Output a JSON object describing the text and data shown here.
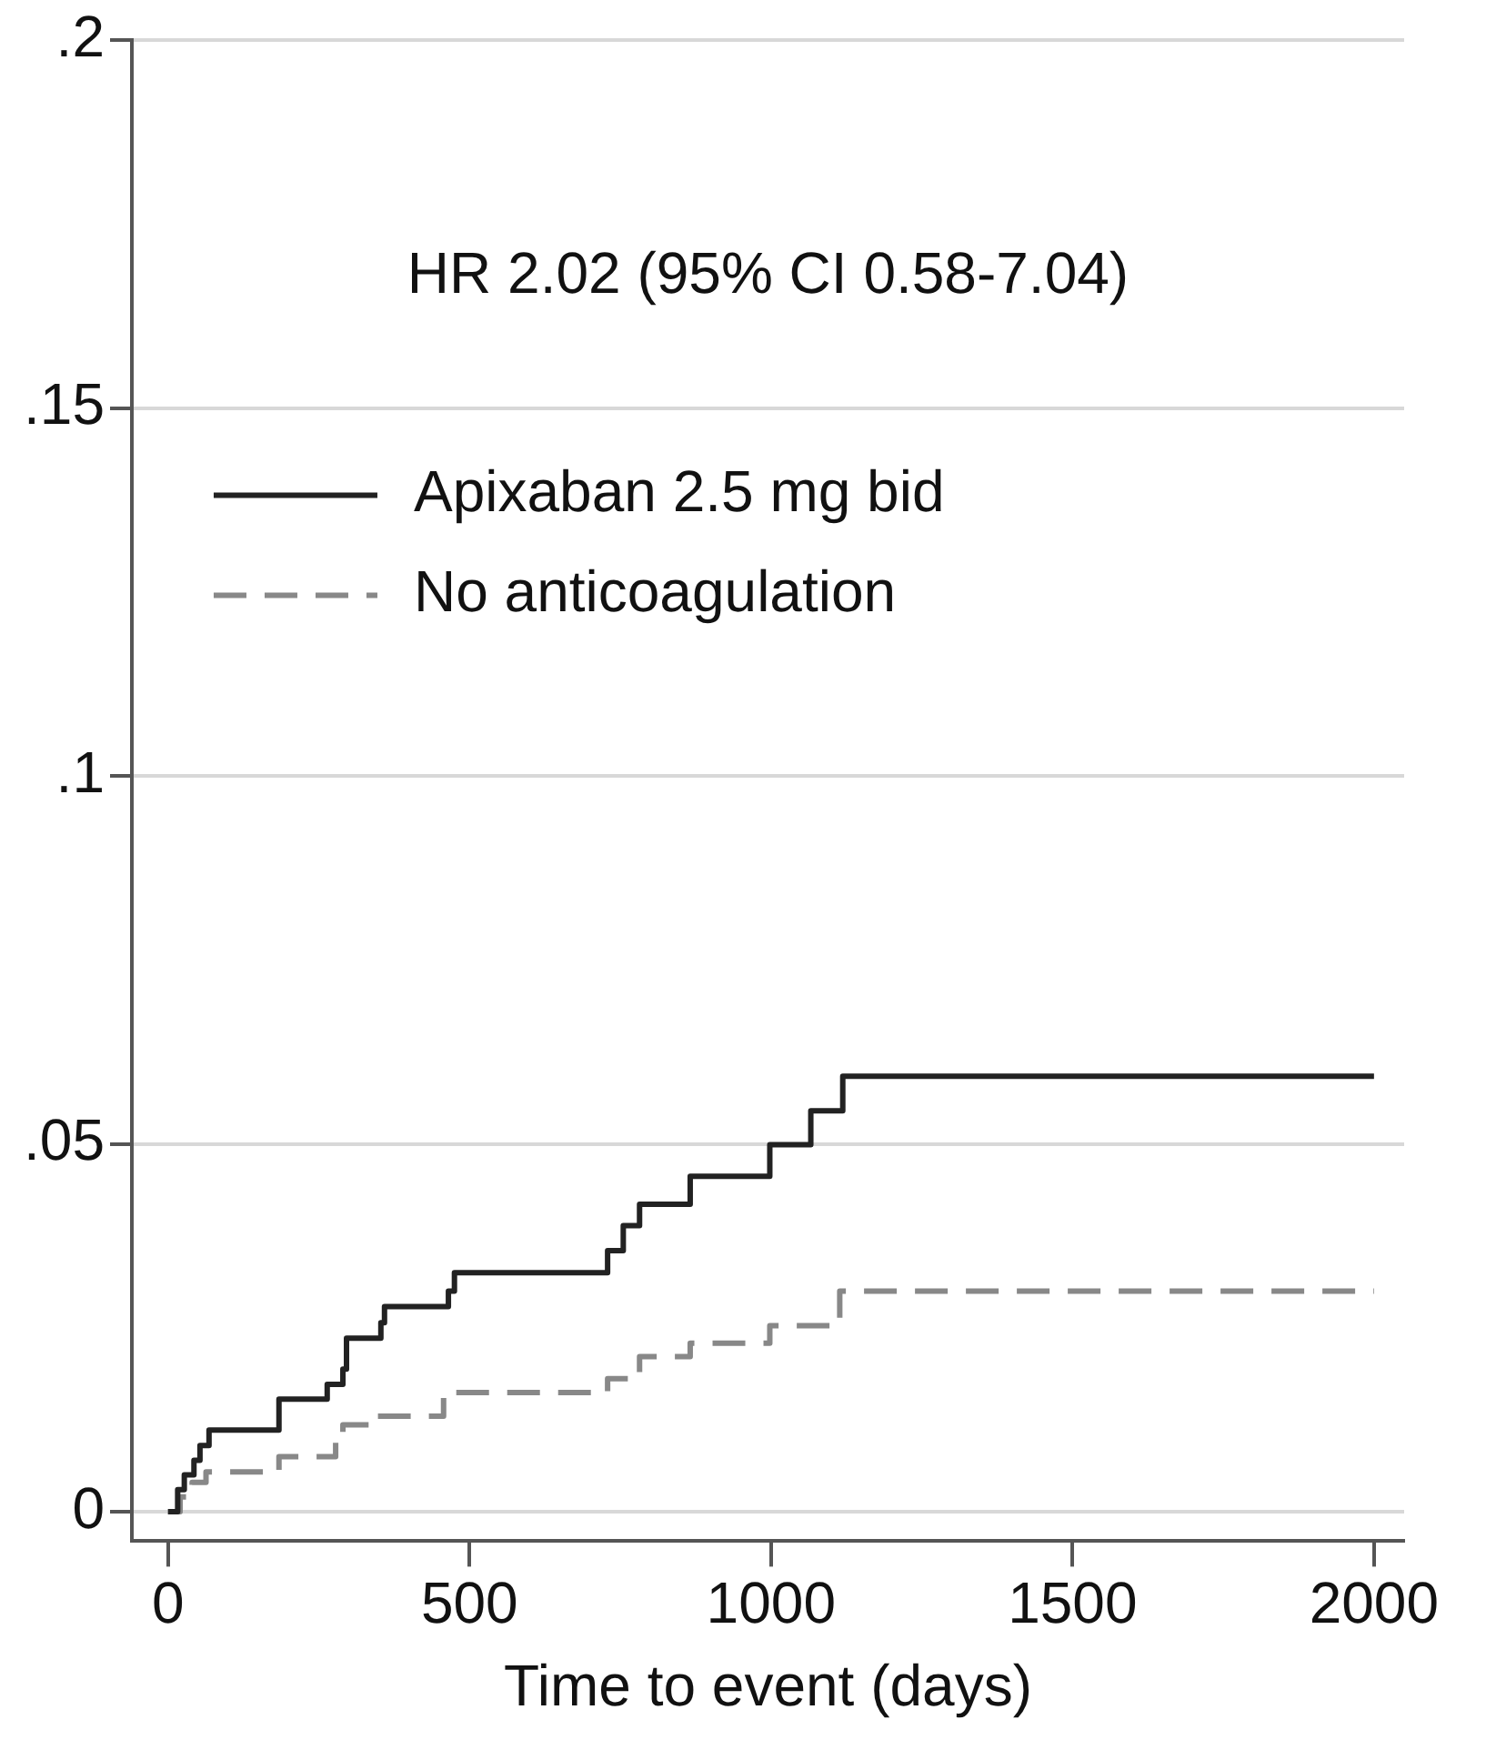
{
  "chart_data": {
    "type": "step",
    "xlabel": "Time to event (days)",
    "annotations": [
      "HR 2.02 (95% CI 0.58-7.04)"
    ],
    "xlim": [
      -60,
      2050
    ],
    "xticks": [
      0,
      500,
      1000,
      1500,
      2000
    ],
    "ylim": [
      -0.004,
      0.2
    ],
    "yticks": [
      {
        "value": 0,
        "label": "0"
      },
      {
        "value": 0.05,
        "label": ".05"
      },
      {
        "value": 0.1,
        "label": ".1"
      },
      {
        "value": 0.15,
        "label": ".15"
      },
      {
        "value": 0.2,
        "label": ".2"
      }
    ],
    "grid": "y",
    "legend": "top left",
    "marker": "none",
    "series": [
      {
        "name": "Apixaban 2.5 mg bid",
        "color": "#222222",
        "line_style": "solid",
        "x": [
          0,
          16,
          27,
          43,
          53,
          68,
          184,
          264,
          290,
          296,
          353,
          359,
          465,
          475,
          729,
          755,
          782,
          866,
          998,
          1066,
          1119,
          2000
        ],
        "values": [
          0,
          0.003,
          0.005,
          0.007,
          0.009,
          0.0111,
          0.0153,
          0.0173,
          0.0194,
          0.0236,
          0.0257,
          0.0279,
          0.03,
          0.0325,
          0.0355,
          0.0389,
          0.0418,
          0.0456,
          0.0499,
          0.0545,
          0.0592,
          0.0592
        ]
      },
      {
        "name": "No anticoagulation",
        "color": "#888888",
        "line_style": "dashed",
        "x": [
          0,
          20,
          40,
          63,
          184,
          278,
          290,
          347,
          457,
          729,
          782,
          866,
          998,
          1114,
          2000
        ],
        "values": [
          0,
          0.002,
          0.004,
          0.0054,
          0.0075,
          0.0094,
          0.0118,
          0.013,
          0.0162,
          0.0181,
          0.0211,
          0.0229,
          0.0253,
          0.03,
          0.03
        ]
      }
    ]
  }
}
